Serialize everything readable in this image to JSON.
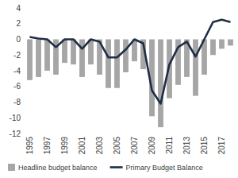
{
  "chart_data": {
    "type": "bar",
    "categories": [
      "1995",
      null,
      "1997",
      null,
      "1999",
      null,
      "2001",
      null,
      "2003",
      null,
      "2005",
      null,
      "2007",
      null,
      "2009",
      null,
      "2011",
      null,
      "2013",
      null,
      "2015",
      null,
      "2017",
      null
    ],
    "series": [
      {
        "name": "Headline budget balance",
        "type": "bar",
        "color": "#a6a6a6",
        "values": [
          -5.2,
          -4.8,
          -4.0,
          -4.5,
          -3.0,
          -3.2,
          -4.8,
          -3.2,
          -4.5,
          -6.2,
          -6.2,
          -4.2,
          -2.8,
          -3.8,
          -9.8,
          -11.2,
          -7.5,
          -5.8,
          -4.8,
          -7.2,
          -4.5,
          -2.0,
          -1.2,
          -0.8
        ]
      },
      {
        "name": "Primary Budget Balance",
        "type": "line",
        "color": "#1f2e45",
        "values": [
          0.3,
          0.1,
          0.0,
          -1.0,
          0.0,
          0.0,
          -1.2,
          0.0,
          -0.3,
          -2.3,
          -2.3,
          -1.3,
          0.0,
          -0.5,
          -6.5,
          -8.2,
          -3.2,
          -1.0,
          -0.3,
          -2.2,
          0.0,
          2.2,
          2.5,
          2.2
        ]
      }
    ],
    "ylim": [
      -12,
      4
    ],
    "yticks": [
      -12,
      -10,
      -8,
      -6,
      -4,
      -2,
      0,
      2,
      4
    ],
    "grid": false,
    "legend": "bottom"
  }
}
